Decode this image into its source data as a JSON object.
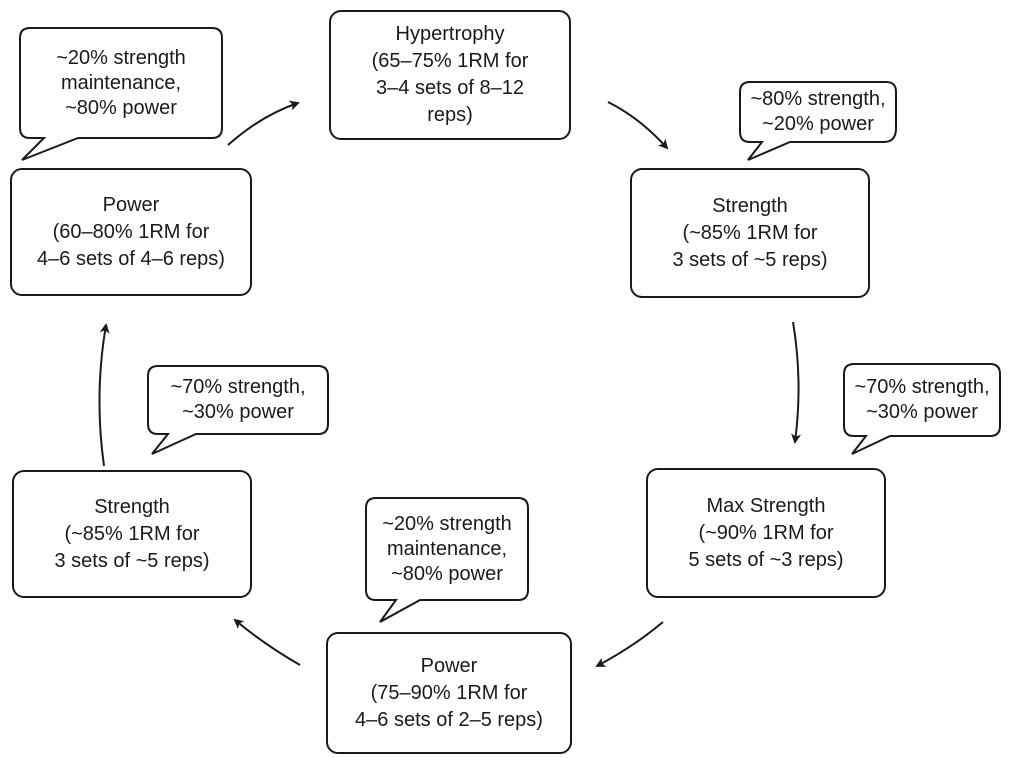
{
  "phases": [
    {
      "id": "hypertrophy",
      "lines": [
        "Hypertrophy",
        "(65–75% 1RM for",
        "3–4 sets of 8–12",
        "reps)"
      ]
    },
    {
      "id": "strength-a",
      "lines": [
        "Strength",
        "(~85% 1RM for",
        "3 sets of ~5 reps)"
      ]
    },
    {
      "id": "max-strength",
      "lines": [
        "Max Strength",
        "(~90% 1RM for",
        "5 sets of ~3 reps)"
      ]
    },
    {
      "id": "power-b",
      "lines": [
        "Power",
        "(75–90% 1RM for",
        "4–6 sets of 2–5 reps)"
      ]
    },
    {
      "id": "strength-b",
      "lines": [
        "Strength",
        "(~85% 1RM for",
        "3 sets of ~5 reps)"
      ]
    },
    {
      "id": "power-a",
      "lines": [
        "Power",
        "(60–80% 1RM for",
        "4–6 sets of 4–6 reps)"
      ]
    }
  ],
  "ratios": [
    {
      "id": "top-left",
      "lines": [
        "~20% strength",
        "maintenance,",
        "~80% power"
      ]
    },
    {
      "id": "top-right",
      "lines": [
        "~80% strength,",
        "~20% power"
      ]
    },
    {
      "id": "right",
      "lines": [
        "~70% strength,",
        "~30% power"
      ]
    },
    {
      "id": "bottom",
      "lines": [
        "~20% strength",
        "maintenance,",
        "~80% power"
      ]
    },
    {
      "id": "left",
      "lines": [
        "~70% strength,",
        "~30% power"
      ]
    }
  ]
}
